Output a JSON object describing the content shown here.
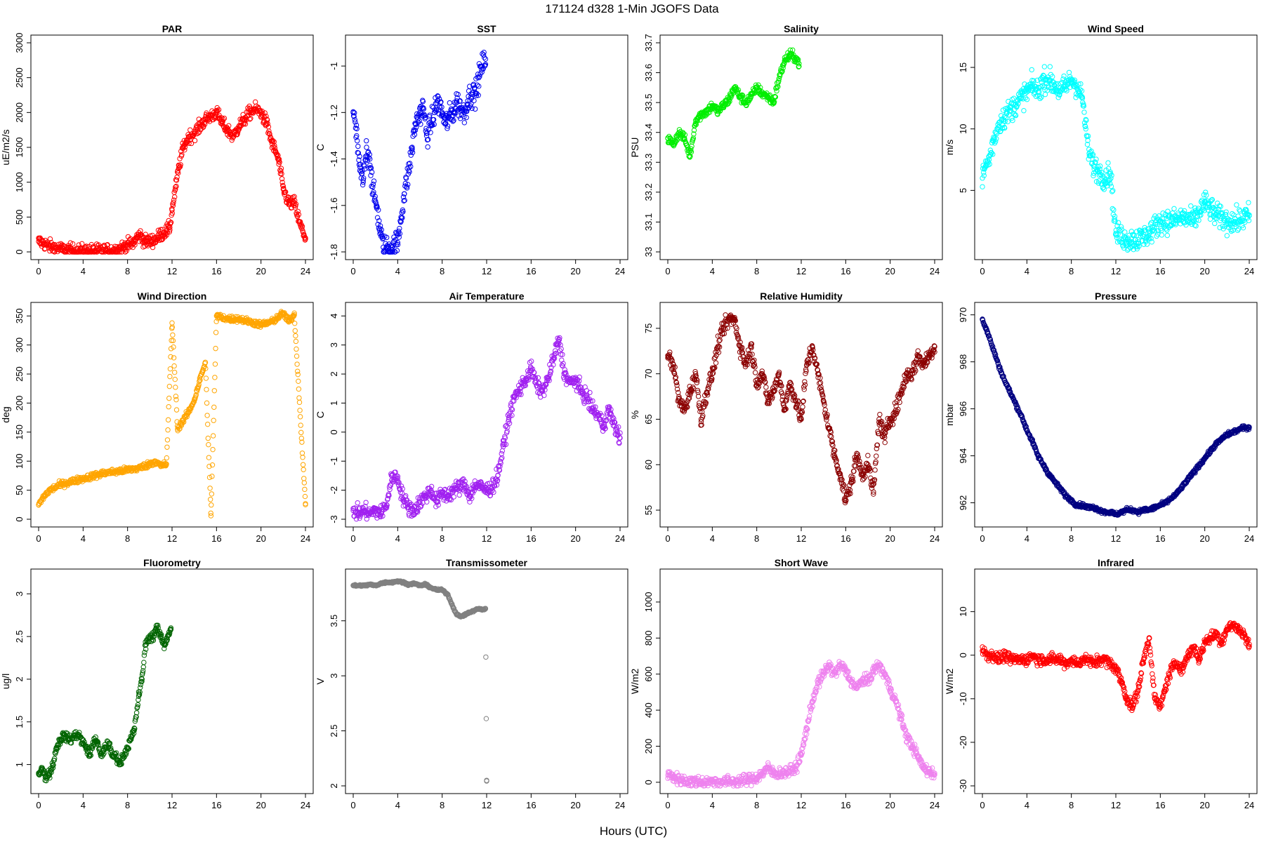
{
  "title": "171124   d328   1-Min  JGOFS Data",
  "xlabel": "Hours (UTC)",
  "chart_data": [
    {
      "name": "par",
      "type": "scatter",
      "title": "PAR",
      "ylabel": "uE/m2/s",
      "color": "#ff0000",
      "xlim": [
        0,
        24
      ],
      "ylim": [
        0,
        3000
      ],
      "xticks": [
        0,
        4,
        8,
        12,
        16,
        20,
        24
      ],
      "yticks": [
        0,
        500,
        1000,
        1500,
        2000,
        2500,
        3000
      ],
      "noise": 90,
      "x": [
        0,
        0.5,
        1,
        2,
        3,
        4,
        5,
        6,
        7,
        7.5,
        8,
        8.5,
        8.9,
        9.2,
        9.5,
        10,
        10.5,
        11,
        11.5,
        11.8,
        12,
        12.3,
        12.6,
        13,
        13.5,
        14,
        14.5,
        15,
        15.5,
        16,
        16.5,
        17,
        17.5,
        18,
        18.5,
        19,
        19.5,
        20,
        20.5,
        21,
        21.3,
        21.6,
        22,
        22.5,
        23,
        23.5,
        24
      ],
      "y": [
        150,
        120,
        80,
        40,
        20,
        15,
        15,
        18,
        30,
        60,
        100,
        120,
        220,
        240,
        150,
        150,
        180,
        250,
        300,
        350,
        600,
        900,
        1200,
        1500,
        1650,
        1700,
        1800,
        1900,
        1950,
        2000,
        1850,
        1750,
        1650,
        1800,
        1900,
        2000,
        2050,
        2000,
        1850,
        1550,
        1450,
        1300,
        900,
        700,
        700,
        400,
        200
      ]
    },
    {
      "name": "sst",
      "type": "scatter",
      "title": "SST",
      "ylabel": "C",
      "color": "#0000ee",
      "xlim": [
        0,
        24
      ],
      "ylim": [
        -1.8,
        -0.9
      ],
      "xticks": [
        0,
        4,
        8,
        12,
        16,
        20,
        24
      ],
      "yticks": [
        -1.8,
        -1.6,
        -1.4,
        -1.2,
        -1.0
      ],
      "noise": 0.05,
      "x": [
        0,
        0.3,
        0.6,
        0.9,
        1.2,
        1.5,
        1.8,
        2.1,
        2.4,
        2.7,
        3,
        3.5,
        4,
        4.3,
        4.6,
        5,
        5.3,
        5.6,
        6,
        6.3,
        6.6,
        7,
        7.3,
        7.6,
        8,
        8.3,
        8.6,
        9,
        9.3,
        9.6,
        10,
        10.3,
        10.6,
        11,
        11.3,
        11.6,
        11.9
      ],
      "y": [
        -1.2,
        -1.3,
        -1.45,
        -1.5,
        -1.35,
        -1.4,
        -1.55,
        -1.6,
        -1.7,
        -1.78,
        -1.78,
        -1.78,
        -1.76,
        -1.65,
        -1.55,
        -1.45,
        -1.35,
        -1.25,
        -1.2,
        -1.18,
        -1.3,
        -1.25,
        -1.2,
        -1.15,
        -1.2,
        -1.25,
        -1.22,
        -1.2,
        -1.15,
        -1.18,
        -1.2,
        -1.15,
        -1.12,
        -1.12,
        -1.05,
        -1.0,
        -0.97
      ]
    },
    {
      "name": "salinity",
      "type": "scatter",
      "title": "Salinity",
      "ylabel": "PSU",
      "color": "#00ee00",
      "xlim": [
        0,
        24
      ],
      "ylim": [
        33.0,
        33.7
      ],
      "xticks": [
        0,
        4,
        8,
        12,
        16,
        20,
        24
      ],
      "yticks": [
        33.0,
        33.1,
        33.2,
        33.3,
        33.4,
        33.5,
        33.6,
        33.7
      ],
      "noise": 0.015,
      "x": [
        0,
        0.5,
        1,
        1.5,
        2,
        2.5,
        3,
        3.5,
        4,
        4.5,
        5,
        5.5,
        6,
        6.5,
        7,
        7.5,
        8,
        8.5,
        9,
        9.5,
        10,
        10.5,
        11,
        11.5,
        11.8
      ],
      "y": [
        33.38,
        33.36,
        33.4,
        33.38,
        33.32,
        33.44,
        33.46,
        33.47,
        33.49,
        33.47,
        33.49,
        33.51,
        33.55,
        33.52,
        33.5,
        33.52,
        33.55,
        33.53,
        33.52,
        33.5,
        33.58,
        33.64,
        33.66,
        33.65,
        33.63
      ]
    },
    {
      "name": "windspeed",
      "type": "scatter",
      "title": "Wind Speed",
      "ylabel": "m/s",
      "color": "#00ffff",
      "xlim": [
        0,
        24
      ],
      "ylim": [
        0,
        17
      ],
      "xticks": [
        0,
        4,
        8,
        12,
        16,
        20,
        24
      ],
      "yticks": [
        5,
        10,
        15
      ],
      "noise": 0.9,
      "x": [
        0,
        0.3,
        0.6,
        1,
        1.5,
        2,
        2.5,
        3,
        3.5,
        4,
        4.5,
        5,
        5.5,
        6,
        6.5,
        7,
        7.5,
        8,
        8.5,
        9,
        9.3,
        9.6,
        10,
        10.5,
        11,
        11.5,
        12,
        13,
        14,
        15,
        16,
        17,
        18,
        19,
        20,
        21,
        22,
        23,
        24
      ],
      "y": [
        6,
        7,
        7.5,
        9,
        10.5,
        11,
        11.5,
        12,
        12.5,
        13,
        13.5,
        13,
        14,
        14,
        13.5,
        13,
        13.5,
        14,
        13.5,
        12.5,
        10,
        8,
        7,
        6.5,
        6,
        6.5,
        1.5,
        1,
        1,
        1.5,
        2.5,
        2.5,
        2.8,
        2.5,
        4,
        3,
        2.5,
        2.5,
        3
      ]
    },
    {
      "name": "winddir",
      "type": "scatter",
      "title": "Wind Direction",
      "ylabel": "deg",
      "color": "#ffa500",
      "xlim": [
        0,
        24
      ],
      "ylim": [
        0,
        360
      ],
      "xticks": [
        0,
        4,
        8,
        12,
        16,
        20,
        24
      ],
      "yticks": [
        0,
        50,
        100,
        150,
        200,
        250,
        300,
        350
      ],
      "noise": 5,
      "x": [
        0,
        0.5,
        1,
        2,
        3,
        4,
        5,
        6,
        7,
        8,
        9,
        10,
        10.5,
        11,
        11.5,
        12,
        12.5,
        13,
        13.5,
        14,
        14.5,
        15,
        15.5,
        16,
        17,
        18,
        19,
        20,
        21,
        22,
        22.5,
        23,
        24
      ],
      "y": [
        25,
        40,
        50,
        60,
        65,
        70,
        75,
        80,
        82,
        85,
        88,
        95,
        100,
        92,
        95,
        338,
        155,
        170,
        185,
        205,
        240,
        270,
        6,
        350,
        345,
        345,
        340,
        335,
        340,
        355,
        340,
        352,
        25
      ]
    },
    {
      "name": "airtemp",
      "type": "scatter",
      "title": "Air Temperature",
      "ylabel": "C",
      "color": "#a020f0",
      "xlim": [
        0,
        24
      ],
      "ylim": [
        -3,
        4.2
      ],
      "xticks": [
        0,
        4,
        8,
        12,
        16,
        20,
        24
      ],
      "yticks": [
        -3,
        -2,
        -1,
        0,
        1,
        2,
        3,
        4
      ],
      "noise": 0.25,
      "x": [
        0,
        0.5,
        1,
        1.5,
        2,
        2.5,
        3,
        3.5,
        4,
        4.5,
        5,
        5.5,
        6,
        6.5,
        7,
        7.5,
        8,
        8.5,
        9,
        9.5,
        10,
        10.5,
        11,
        11.5,
        12,
        12.5,
        13,
        13.5,
        14,
        14.5,
        15,
        15.5,
        16,
        16.5,
        17,
        17.5,
        18,
        18.5,
        19,
        19.5,
        20,
        20.5,
        21,
        21.5,
        22,
        22.5,
        23,
        23.5,
        24
      ],
      "y": [
        -2.7,
        -2.8,
        -2.7,
        -2.8,
        -2.7,
        -2.8,
        -2.5,
        -1.5,
        -1.6,
        -2.3,
        -2.6,
        -2.7,
        -2.4,
        -2.2,
        -2,
        -2.4,
        -2.1,
        -2.2,
        -2.0,
        -1.9,
        -1.8,
        -2.2,
        -1.8,
        -1.9,
        -2.0,
        -1.9,
        -1.5,
        -0.5,
        0.5,
        1.2,
        1.5,
        1.8,
        2.2,
        1.6,
        1.4,
        1.8,
        2.5,
        3.2,
        2.0,
        1.7,
        1.8,
        1.4,
        1.2,
        0.8,
        0.6,
        0.2,
        0.8,
        0.2,
        -0.2
      ]
    },
    {
      "name": "rh",
      "type": "scatter",
      "title": "Relative Humidity",
      "ylabel": "%",
      "color": "#8b0000",
      "xlim": [
        0,
        24
      ],
      "ylim": [
        54,
        77
      ],
      "xticks": [
        0,
        4,
        8,
        12,
        16,
        20,
        24
      ],
      "yticks": [
        55,
        60,
        65,
        70,
        75
      ],
      "noise": 0.8,
      "x": [
        0,
        0.5,
        1,
        1.5,
        2,
        2.5,
        3,
        3.5,
        4,
        4.5,
        5,
        5.5,
        6,
        6.5,
        7,
        7.5,
        8,
        8.5,
        9,
        9.5,
        10,
        10.5,
        11,
        11.5,
        12,
        12.5,
        13,
        13.5,
        14,
        14.5,
        15,
        15.5,
        16,
        16.5,
        17,
        17.5,
        18,
        18.5,
        19,
        19.5,
        20,
        20.5,
        21,
        21.5,
        22,
        22.5,
        23,
        23.5,
        24
      ],
      "y": [
        72,
        71,
        67,
        66,
        68,
        70,
        65,
        68,
        70,
        73,
        75,
        76,
        76,
        73,
        71,
        73,
        69,
        70,
        67,
        68,
        70,
        66,
        69,
        67,
        65,
        71,
        73,
        70,
        67,
        64,
        61,
        59,
        56,
        58,
        61,
        59,
        60,
        57,
        65,
        63,
        65,
        66,
        68,
        70,
        70,
        72,
        71,
        72,
        73
      ]
    },
    {
      "name": "pressure",
      "type": "scatter",
      "title": "Pressure",
      "ylabel": "mbar",
      "color": "#000080",
      "xlim": [
        0,
        24
      ],
      "ylim": [
        961.3,
        970.2
      ],
      "xticks": [
        0,
        4,
        8,
        12,
        16,
        20,
        24
      ],
      "yticks": [
        962,
        964,
        966,
        968,
        970
      ],
      "noise": 0.08,
      "x": [
        0,
        0.5,
        1,
        1.5,
        2,
        2.5,
        3,
        3.5,
        4,
        4.5,
        5,
        5.5,
        6,
        6.5,
        7,
        7.5,
        8,
        8.5,
        9,
        9.5,
        10,
        10.5,
        11,
        11.5,
        12,
        12.5,
        13,
        13.5,
        14,
        14.5,
        15,
        15.5,
        16,
        16.5,
        17,
        17.5,
        18,
        18.5,
        19,
        19.5,
        20,
        20.5,
        21,
        21.5,
        22,
        22.5,
        23,
        23.5,
        24
      ],
      "y": [
        969.8,
        969.2,
        968.5,
        967.8,
        967.2,
        966.7,
        966.2,
        965.7,
        965.1,
        964.6,
        964.0,
        963.6,
        963.2,
        962.9,
        962.6,
        962.3,
        962.1,
        961.9,
        961.9,
        961.8,
        961.8,
        961.7,
        961.6,
        961.6,
        961.5,
        961.6,
        961.7,
        961.7,
        961.6,
        961.7,
        961.7,
        961.8,
        961.9,
        962.0,
        962.2,
        962.4,
        962.7,
        963.0,
        963.3,
        963.6,
        963.9,
        964.2,
        964.5,
        964.7,
        964.9,
        965.0,
        965.1,
        965.2,
        965.2
      ]
    },
    {
      "name": "fluorometry",
      "type": "scatter",
      "title": "Fluorometry",
      "ylabel": "ug/l",
      "color": "#006400",
      "xlim": [
        0,
        24
      ],
      "ylim": [
        0.75,
        3.2
      ],
      "xticks": [
        0,
        4,
        8,
        12,
        16,
        20,
        24
      ],
      "yticks": [
        1.0,
        1.5,
        2.0,
        2.5,
        3.0
      ],
      "noise": 0.05,
      "x": [
        0,
        0.3,
        0.6,
        1,
        1.3,
        1.6,
        2,
        2.3,
        2.6,
        3,
        3.3,
        3.6,
        4,
        4.3,
        4.6,
        5,
        5.3,
        5.6,
        6,
        6.3,
        6.6,
        7,
        7.3,
        7.6,
        8,
        8.3,
        8.6,
        9,
        9.3,
        9.6,
        10,
        10.3,
        10.6,
        11,
        11.3,
        11.6,
        11.9
      ],
      "y": [
        0.9,
        0.95,
        0.85,
        0.9,
        1.0,
        1.2,
        1.3,
        1.35,
        1.3,
        1.3,
        1.35,
        1.35,
        1.25,
        1.2,
        1.1,
        1.3,
        1.25,
        1.1,
        1.2,
        1.25,
        1.1,
        1.1,
        1.0,
        1.1,
        1.2,
        1.3,
        1.4,
        1.8,
        2.0,
        2.4,
        2.5,
        2.5,
        2.6,
        2.5,
        2.4,
        2.5,
        2.6
      ]
    },
    {
      "name": "transmissometer",
      "type": "scatter",
      "title": "Transmissometer",
      "ylabel": "V",
      "color": "#808080",
      "xlim": [
        0,
        24
      ],
      "ylim": [
        2.0,
        3.9
      ],
      "xticks": [
        0,
        4,
        8,
        12,
        16,
        20,
        24
      ],
      "yticks": [
        2.0,
        2.5,
        3.0,
        3.5
      ],
      "noise": 0.008,
      "x": [
        0,
        0.5,
        1,
        1.5,
        2,
        2.5,
        3,
        3.5,
        4,
        4.5,
        5,
        5.5,
        6,
        6.5,
        7,
        7.5,
        8,
        8.5,
        9,
        9.3,
        9.6,
        10,
        10.3,
        10.6,
        11,
        11.3,
        11.6,
        11.9,
        12
      ],
      "y": [
        3.82,
        3.82,
        3.82,
        3.83,
        3.82,
        3.84,
        3.85,
        3.85,
        3.86,
        3.85,
        3.83,
        3.84,
        3.82,
        3.83,
        3.8,
        3.78,
        3.78,
        3.74,
        3.62,
        3.56,
        3.54,
        3.55,
        3.57,
        3.58,
        3.6,
        3.61,
        3.6,
        3.61,
        2.05
      ]
    },
    {
      "name": "shortwave",
      "type": "scatter",
      "title": "Short Wave",
      "ylabel": "W/m2",
      "color": "#ee82ee",
      "xlim": [
        0,
        24
      ],
      "ylim": [
        -20,
        1140
      ],
      "xticks": [
        0,
        4,
        8,
        12,
        16,
        20,
        24
      ],
      "yticks": [
        0,
        200,
        400,
        600,
        800,
        1000
      ],
      "noise": 30,
      "x": [
        0,
        0.5,
        1,
        2,
        3,
        4,
        5,
        6,
        7,
        8,
        8.5,
        9,
        9.5,
        10,
        10.5,
        11,
        11.5,
        12,
        12.5,
        13,
        13.5,
        14,
        14.5,
        15,
        15.5,
        16,
        16.5,
        17,
        17.5,
        18,
        18.5,
        19,
        19.5,
        20,
        20.5,
        21,
        21.5,
        22,
        22.5,
        23,
        23.5,
        24
      ],
      "y": [
        40,
        30,
        15,
        5,
        3,
        3,
        3,
        5,
        10,
        25,
        50,
        80,
        50,
        50,
        55,
        60,
        80,
        150,
        300,
        450,
        550,
        600,
        650,
        600,
        650,
        620,
        560,
        520,
        570,
        560,
        620,
        650,
        600,
        520,
        450,
        350,
        250,
        200,
        140,
        80,
        60,
        50
      ]
    },
    {
      "name": "infrared",
      "type": "scatter",
      "title": "Infrared",
      "ylabel": "W/m2",
      "color": "#ff0000",
      "xlim": [
        0,
        24
      ],
      "ylim": [
        -30,
        18
      ],
      "xticks": [
        0,
        4,
        8,
        12,
        16,
        20,
        24
      ],
      "yticks": [
        -30,
        -20,
        -10,
        0,
        10
      ],
      "noise": 1.2,
      "x": [
        0,
        0.5,
        1,
        1.5,
        2,
        2.5,
        3,
        3.5,
        4,
        4.5,
        5,
        5.5,
        6,
        6.5,
        7,
        7.5,
        8,
        8.5,
        9,
        9.5,
        10,
        10.5,
        11,
        11.5,
        12,
        12.5,
        13,
        13.5,
        14,
        14.5,
        15,
        15.5,
        16,
        16.5,
        17,
        17.5,
        18,
        18.5,
        19,
        19.5,
        20,
        20.5,
        21,
        21.5,
        22,
        22.5,
        23,
        23.5,
        24
      ],
      "y": [
        1,
        0,
        0,
        -1,
        0,
        -1,
        -1,
        -1,
        -1,
        0,
        -1,
        -1,
        -1,
        -1,
        -1,
        -2,
        -1,
        -2,
        -1,
        -1,
        -2,
        -1,
        -1,
        -2,
        -3,
        -6,
        -10,
        -12,
        -8,
        -1,
        4,
        -10,
        -12,
        -7,
        -3,
        -2,
        -3,
        0,
        2,
        -1,
        3,
        4,
        5,
        3,
        6,
        7,
        6,
        5,
        2
      ]
    }
  ]
}
